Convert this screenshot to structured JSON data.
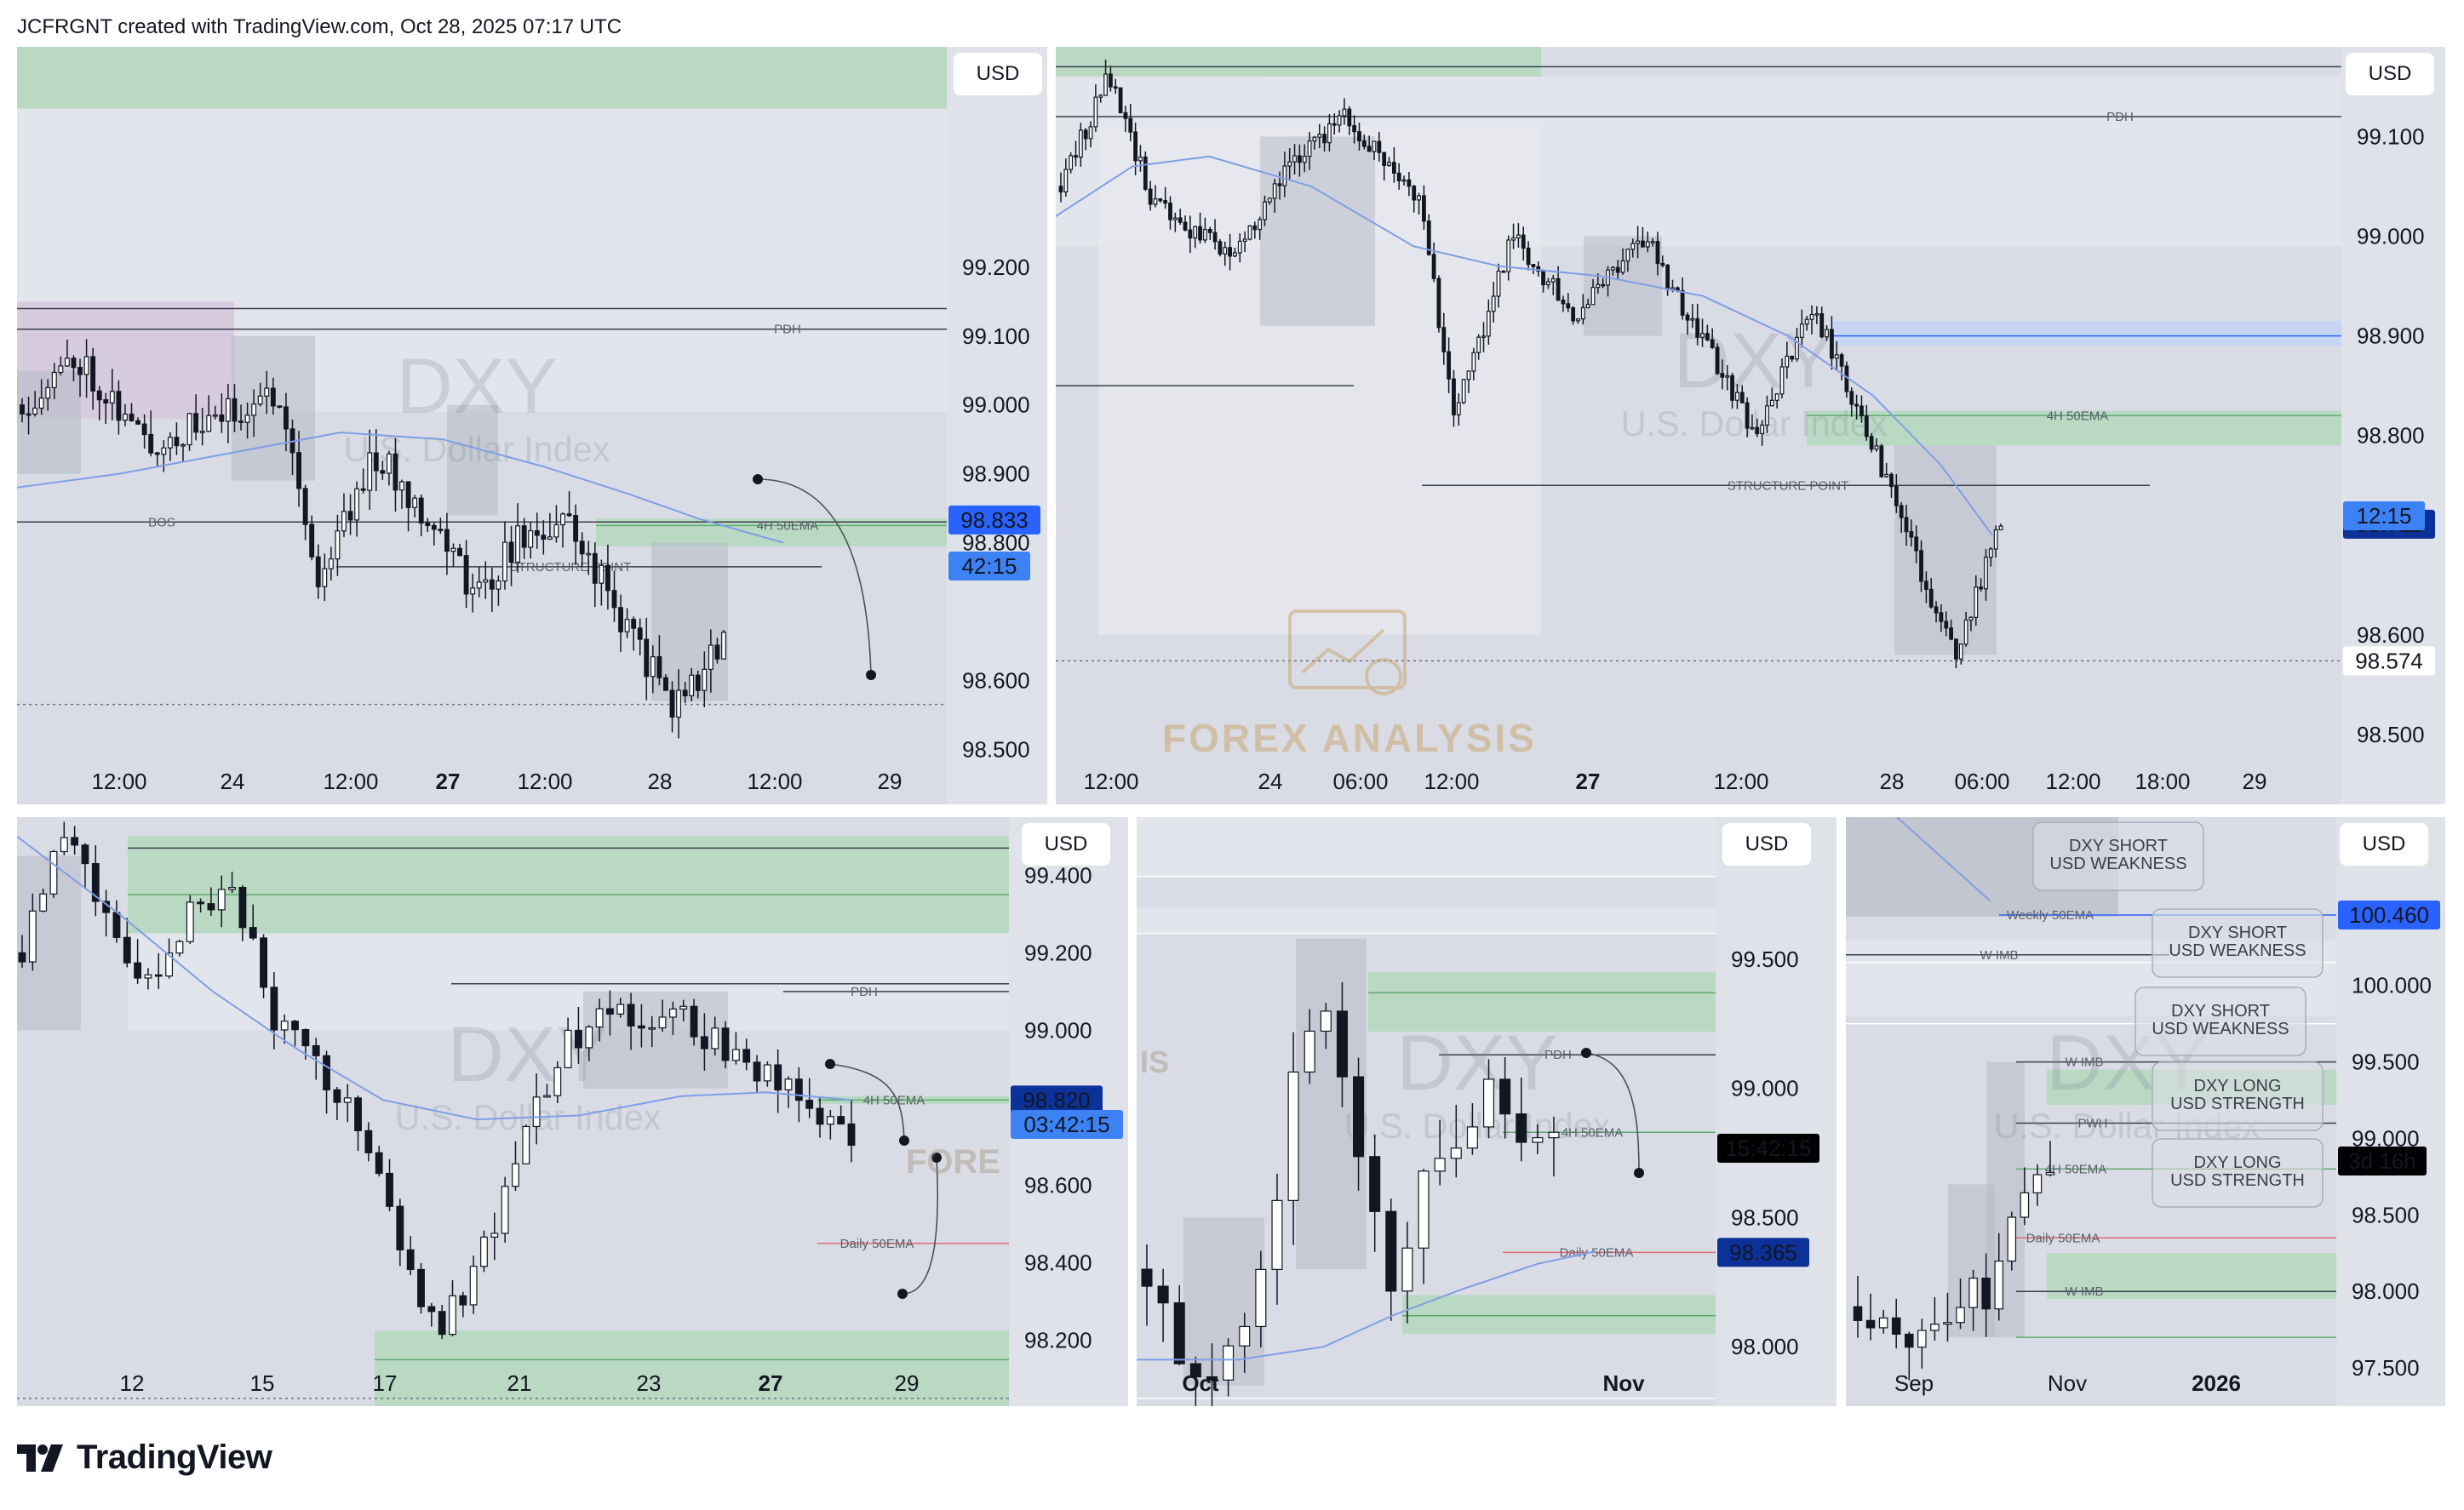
{
  "header": {
    "attribution": "JCFRGNT created with TradingView.com, Oct 28, 2025 07:17 UTC"
  },
  "footer": {
    "brand": "TradingView"
  },
  "colors": {
    "panel_bg": "#d9dce4",
    "candle": "#131722",
    "ema": "#7f9ee6",
    "zone_green": "#b9d9c3",
    "zone_purple": "#d7cbe0",
    "zone_blue": "#c5d5f3",
    "price_label": "#2962ff",
    "price_label_dark": "#0c3299"
  },
  "watermark": {
    "main": "DXY",
    "sub": "U.S. Dollar Index",
    "logo_text": "FOREX ANALYSIS",
    "short": "FORE"
  },
  "chart_data": [
    {
      "id": "p1",
      "type": "candlestick",
      "timeframe": "1h",
      "currency_button": "USD",
      "y_ticks": [
        "99.200",
        "99.100",
        "99.000",
        "98.900",
        "98.800",
        "98.600",
        "98.500"
      ],
      "x_ticks": [
        "12:00",
        "24",
        "12:00",
        "27",
        "12:00",
        "28",
        "12:00",
        "29"
      ],
      "x_bold": [
        false,
        false,
        false,
        true,
        false,
        false,
        false,
        false
      ],
      "ylim": [
        98.42,
        99.52
      ],
      "price_label": "98.833",
      "countdown_label": "42:15",
      "annotations": [
        "PDH",
        "BOS",
        "STRUCTURE POINT",
        "4H 50EMA"
      ]
    },
    {
      "id": "p2",
      "type": "candlestick",
      "timeframe": "15m",
      "currency_button": "USD",
      "y_ticks": [
        "99.100",
        "99.000",
        "98.900",
        "98.800",
        "98.600",
        "98.500"
      ],
      "x_ticks": [
        "12:00",
        "24",
        "06:00",
        "12:00",
        "27",
        "12:00",
        "28",
        "06:00",
        "12:00",
        "18:00",
        "29"
      ],
      "x_bold": [
        false,
        false,
        false,
        false,
        true,
        false,
        false,
        false,
        false,
        false,
        false
      ],
      "ylim": [
        98.43,
        99.19
      ],
      "price_label": "98.711",
      "countdown_label": "12:15",
      "low_label": "98.574",
      "annotations": [
        "PDH",
        "STRUCTURE POINT",
        "4H 50EMA"
      ]
    },
    {
      "id": "p3",
      "type": "candlestick",
      "timeframe": "4h",
      "currency_button": "USD",
      "y_ticks": [
        "99.400",
        "99.200",
        "99.000",
        "98.600",
        "98.400",
        "98.200"
      ],
      "x_ticks": [
        "12",
        "15",
        "17",
        "21",
        "23",
        "27",
        "29"
      ],
      "x_bold": [
        false,
        false,
        false,
        false,
        false,
        true,
        false
      ],
      "ylim": [
        98.03,
        99.55
      ],
      "price_label": "98.820",
      "countdown_label": "03:42:15",
      "annotations": [
        "PDH",
        "4H 50EMA",
        "Daily 50EMA"
      ]
    },
    {
      "id": "p4",
      "type": "candlestick",
      "timeframe": "1D",
      "currency_button": "USD",
      "y_ticks": [
        "99.500",
        "99.000",
        "98.500",
        "98.000"
      ],
      "x_ticks": [
        "Oct",
        "Nov"
      ],
      "x_bold": [
        true,
        true
      ],
      "ylim": [
        97.77,
        100.05
      ],
      "price_label": "98.365",
      "countdown_label": "15:42:15",
      "annotations": [
        "PDH",
        "4H 50EMA",
        "Daily 50EMA"
      ]
    },
    {
      "id": "p5",
      "type": "candlestick",
      "timeframe": "1W",
      "currency_button": "USD",
      "y_ticks": [
        "100.000",
        "99.500",
        "99.000",
        "98.500",
        "98.000",
        "97.500"
      ],
      "x_ticks": [
        "Sep",
        "Nov",
        "2026"
      ],
      "x_bold": [
        false,
        false,
        true
      ],
      "ylim": [
        97.25,
        101.1
      ],
      "price_label": "100.460",
      "countdown_label": "3d 16h",
      "annotations": [
        "Weekly 50EMA",
        "W IMB",
        "W IMB",
        "PWH",
        "W IMB",
        "Daily 50EMA",
        "4H 50EMA"
      ],
      "callouts": [
        {
          "line1": "DXY SHORT",
          "line2": "USD WEAKNESS"
        },
        {
          "line1": "DXY SHORT",
          "line2": "USD WEAKNESS"
        },
        {
          "line1": "DXY SHORT",
          "line2": "USD WEAKNESS"
        },
        {
          "line1": "DXY LONG",
          "line2": "USD STRENGTH"
        },
        {
          "line1": "DXY LONG",
          "line2": "USD STRENGTH"
        }
      ]
    }
  ]
}
